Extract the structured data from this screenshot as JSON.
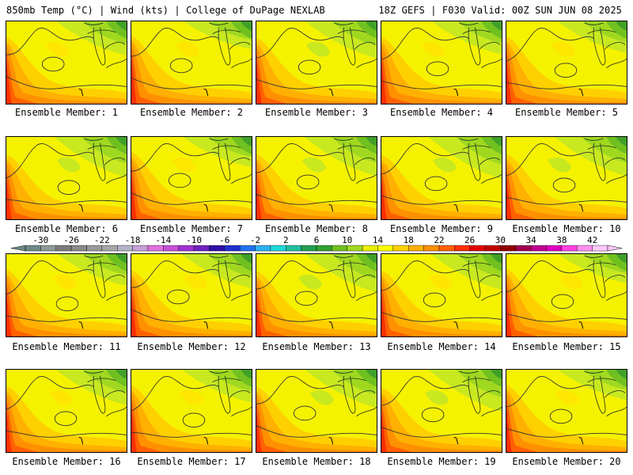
{
  "header": {
    "left": "850mb Temp (°C) | Wind (kts) | College of DuPage NEXLAB",
    "right": "18Z GEFS | F030 Valid: 00Z SUN JUN 08 2025"
  },
  "member_label_prefix": "Ensemble Member: ",
  "members": [
    {
      "label": "Ensemble Member: 1",
      "member": 1,
      "warmth": 1.0
    },
    {
      "label": "Ensemble Member: 2",
      "member": 2,
      "warmth": 1.25
    },
    {
      "label": "Ensemble Member: 3",
      "member": 3,
      "warmth": 0.9
    },
    {
      "label": "Ensemble Member: 4",
      "member": 4,
      "warmth": 1.05
    },
    {
      "label": "Ensemble Member: 5",
      "member": 5,
      "warmth": 1.1
    },
    {
      "label": "Ensemble Member: 6",
      "member": 6,
      "warmth": 0.75
    },
    {
      "label": "Ensemble Member: 7",
      "member": 7,
      "warmth": 1.15
    },
    {
      "label": "Ensemble Member: 8",
      "member": 8,
      "warmth": 0.8
    },
    {
      "label": "Ensemble Member: 9",
      "member": 9,
      "warmth": 0.7
    },
    {
      "label": "Ensemble Member: 10",
      "member": 10,
      "warmth": 0.8
    },
    {
      "label": "Ensemble Member: 11",
      "member": 11,
      "warmth": 1.1
    },
    {
      "label": "Ensemble Member: 12",
      "member": 12,
      "warmth": 1.0
    },
    {
      "label": "Ensemble Member: 13",
      "member": 13,
      "warmth": 0.85
    },
    {
      "label": "Ensemble Member: 14",
      "member": 14,
      "warmth": 0.95
    },
    {
      "label": "Ensemble Member: 15",
      "member": 15,
      "warmth": 1.2
    },
    {
      "label": "Ensemble Member: 16",
      "member": 16,
      "warmth": 0.95
    },
    {
      "label": "Ensemble Member: 17",
      "member": 17,
      "warmth": 1.05
    },
    {
      "label": "Ensemble Member: 18",
      "member": 18,
      "warmth": 0.85
    },
    {
      "label": "Ensemble Member: 19",
      "member": 19,
      "warmth": 0.7
    },
    {
      "label": "Ensemble Member: 20",
      "member": 20,
      "warmth": 1.15
    }
  ],
  "colorbar": {
    "unit": "°C",
    "tick_labels": [
      "-30",
      "-26",
      "-22",
      "-18",
      "-14",
      "-10",
      "-6",
      "-2",
      "2",
      "6",
      "10",
      "14",
      "18",
      "22",
      "26",
      "30",
      "34",
      "38",
      "42"
    ],
    "bins": [
      {
        "lo": -32,
        "color": "#6e8a86"
      },
      {
        "lo": -30,
        "color": "#8d9a97"
      },
      {
        "lo": -28,
        "color": "#7c7c7c"
      },
      {
        "lo": -26,
        "color": "#8a8a8a"
      },
      {
        "lo": -24,
        "color": "#9a9a9a"
      },
      {
        "lo": -22,
        "color": "#a6a6a6"
      },
      {
        "lo": -20,
        "color": "#b4b4c8"
      },
      {
        "lo": -18,
        "color": "#c8a0d8"
      },
      {
        "lo": -16,
        "color": "#e070e0"
      },
      {
        "lo": -14,
        "color": "#c850d8"
      },
      {
        "lo": -12,
        "color": "#a030d0"
      },
      {
        "lo": -10,
        "color": "#7020c0"
      },
      {
        "lo": -8,
        "color": "#3010a8"
      },
      {
        "lo": -6,
        "color": "#2030d0"
      },
      {
        "lo": -4,
        "color": "#2070f0"
      },
      {
        "lo": -2,
        "color": "#30b0f0"
      },
      {
        "lo": 0,
        "color": "#20d8d8"
      },
      {
        "lo": 2,
        "color": "#20c0a0"
      },
      {
        "lo": 4,
        "color": "#20a050"
      },
      {
        "lo": 6,
        "color": "#30a030"
      },
      {
        "lo": 8,
        "color": "#70c020"
      },
      {
        "lo": 10,
        "color": "#a0d820"
      },
      {
        "lo": 12,
        "color": "#e8f000"
      },
      {
        "lo": 14,
        "color": "#ffff00"
      },
      {
        "lo": 16,
        "color": "#ffd000"
      },
      {
        "lo": 18,
        "color": "#ffb000"
      },
      {
        "lo": 20,
        "color": "#ff9000"
      },
      {
        "lo": 22,
        "color": "#ff6000"
      },
      {
        "lo": 24,
        "color": "#ff3000"
      },
      {
        "lo": 26,
        "color": "#e00000"
      },
      {
        "lo": 28,
        "color": "#c00000"
      },
      {
        "lo": 30,
        "color": "#900000"
      },
      {
        "lo": 32,
        "color": "#a00050"
      },
      {
        "lo": 34,
        "color": "#c00090"
      },
      {
        "lo": 36,
        "color": "#e000c0"
      },
      {
        "lo": 38,
        "color": "#ff40e0"
      },
      {
        "lo": 40,
        "color": "#ff90f0"
      },
      {
        "lo": 42,
        "color": "#ffc8ff"
      }
    ]
  }
}
